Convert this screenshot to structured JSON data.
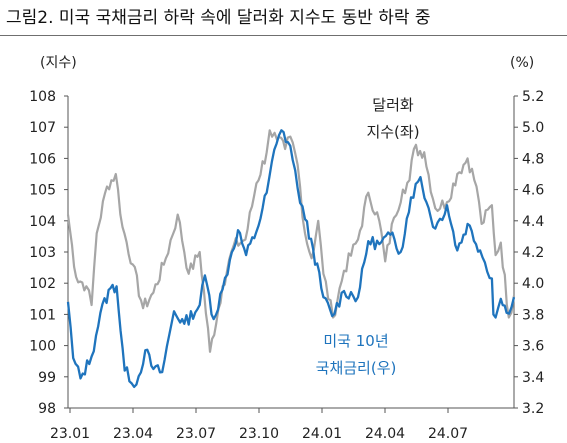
{
  "figure": {
    "title": "그림2.  미국 국채금리 하락 속에 달러화 지수도 동반 하락 중"
  },
  "chart_data": {
    "type": "line",
    "left_unit": "(지수)",
    "right_unit": "(%)",
    "x_ticks": [
      "23.01",
      "23.04",
      "23.07",
      "23.10",
      "24.01",
      "24.04",
      "24.07"
    ],
    "x_range": [
      "2023-01-02",
      "2024-08-30"
    ],
    "y_left": {
      "ticks": [
        98,
        99,
        100,
        101,
        102,
        103,
        104,
        105,
        106,
        107,
        108
      ],
      "range": [
        98,
        108
      ]
    },
    "y_right": {
      "ticks": [
        "3.2",
        "3.4",
        "3.6",
        "3.8",
        "4.0",
        "4.2",
        "4.4",
        "4.6",
        "4.8",
        "5.0",
        "5.2"
      ],
      "range": [
        3.2,
        5.2
      ]
    },
    "annotations": [
      {
        "lines": [
          "달러화",
          "지수(좌)"
        ],
        "series": "dollar_index"
      },
      {
        "lines": [
          "미국 10년",
          "국채금리(우)"
        ],
        "series": "ust10y"
      }
    ],
    "colors": {
      "dollar_index": "#a6a6a6",
      "ust10y": "#1f74bd",
      "axis": "#555555",
      "title_rule": "#6f6f6f"
    },
    "series": [
      {
        "key": "dollar_index",
        "axis": "left",
        "x": [
          "2023-01-02",
          "2023-01-13",
          "2023-01-27",
          "2023-02-03",
          "2023-02-10",
          "2023-02-24",
          "2023-03-08",
          "2023-03-17",
          "2023-03-31",
          "2023-04-14",
          "2023-04-28",
          "2023-05-15",
          "2023-05-31",
          "2023-06-15",
          "2023-06-30",
          "2023-07-14",
          "2023-07-31",
          "2023-08-15",
          "2023-08-31",
          "2023-09-15",
          "2023-09-29",
          "2023-10-03",
          "2023-10-13",
          "2023-10-24",
          "2023-10-31",
          "2023-11-10",
          "2023-11-20",
          "2023-11-29",
          "2023-12-08",
          "2023-12-15",
          "2023-12-28",
          "2024-01-12",
          "2024-01-31",
          "2024-02-14",
          "2024-02-29",
          "2024-03-08",
          "2024-03-20",
          "2024-04-01",
          "2024-04-10",
          "2024-04-16",
          "2024-04-30",
          "2024-05-15",
          "2024-05-31",
          "2024-06-14",
          "2024-06-28",
          "2024-07-10",
          "2024-07-17",
          "2024-07-31",
          "2024-08-05",
          "2024-08-12",
          "2024-08-23",
          "2024-08-30"
        ],
        "values": [
          104.2,
          102.2,
          101.9,
          101.3,
          103.6,
          105.1,
          105.5,
          103.8,
          102.6,
          101.2,
          101.7,
          102.8,
          104.2,
          102.3,
          103.0,
          99.8,
          101.9,
          103.2,
          103.4,
          105.2,
          106.2,
          106.9,
          106.6,
          106.3,
          106.7,
          105.8,
          103.6,
          102.8,
          104.0,
          102.3,
          100.9,
          102.4,
          103.4,
          104.9,
          104.0,
          102.7,
          104.1,
          105.0,
          105.3,
          106.3,
          106.2,
          104.4,
          104.6,
          105.5,
          106.0,
          105.1,
          103.9,
          104.5,
          102.9,
          103.3,
          100.9,
          101.6
        ]
      },
      {
        "key": "ust10y",
        "axis": "right",
        "x": [
          "2023-01-02",
          "2023-01-09",
          "2023-01-19",
          "2023-02-03",
          "2023-02-15",
          "2023-03-01",
          "2023-03-09",
          "2023-03-20",
          "2023-04-05",
          "2023-04-17",
          "2023-04-28",
          "2023-05-10",
          "2023-05-26",
          "2023-06-09",
          "2023-06-30",
          "2023-07-07",
          "2023-07-19",
          "2023-07-31",
          "2023-08-10",
          "2023-08-21",
          "2023-09-01",
          "2023-09-15",
          "2023-09-29",
          "2023-10-06",
          "2023-10-19",
          "2023-10-31",
          "2023-11-10",
          "2023-11-20",
          "2023-12-01",
          "2023-12-15",
          "2023-12-27",
          "2024-01-12",
          "2024-01-31",
          "2024-02-14",
          "2024-02-29",
          "2024-03-15",
          "2024-03-29",
          "2024-04-12",
          "2024-04-25",
          "2024-05-03",
          "2024-05-15",
          "2024-05-31",
          "2024-06-14",
          "2024-06-28",
          "2024-07-15",
          "2024-07-31",
          "2024-08-02",
          "2024-08-05",
          "2024-08-12",
          "2024-08-20",
          "2024-08-30"
        ],
        "values": [
          3.88,
          3.52,
          3.39,
          3.53,
          3.81,
          3.97,
          3.98,
          3.44,
          3.35,
          3.57,
          3.45,
          3.43,
          3.82,
          3.74,
          3.86,
          4.05,
          3.77,
          3.96,
          4.15,
          4.34,
          4.18,
          4.33,
          4.58,
          4.78,
          4.98,
          4.88,
          4.61,
          4.41,
          4.22,
          3.91,
          3.79,
          3.95,
          3.91,
          4.27,
          4.25,
          4.31,
          4.2,
          4.55,
          4.68,
          4.52,
          4.35,
          4.5,
          4.21,
          4.38,
          4.21,
          4.03,
          3.8,
          3.78,
          3.9,
          3.81,
          3.91
        ]
      }
    ]
  }
}
